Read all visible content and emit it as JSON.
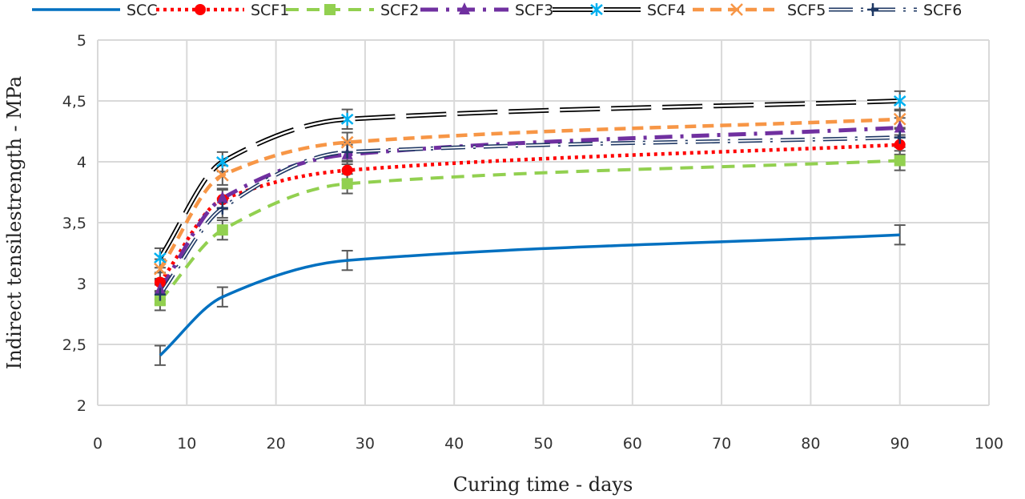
{
  "chart_data": {
    "type": "line",
    "title": "",
    "xlabel": "Curing time - days",
    "ylabel": "Indirect tensilestrength - MPa",
    "xlim": [
      0,
      100
    ],
    "ylim": [
      2,
      5
    ],
    "xticks": [
      "0",
      "10",
      "20",
      "30",
      "40",
      "50",
      "60",
      "70",
      "80",
      "90",
      "100"
    ],
    "yticks": [
      "2",
      "2,5",
      "3",
      "3,5",
      "4",
      "4,5",
      "5"
    ],
    "grid": true,
    "legend_position": "top",
    "x": [
      7,
      14,
      28,
      90
    ],
    "error_bar": 0.08,
    "series": [
      {
        "name": "SCC",
        "values": [
          2.41,
          2.89,
          3.19,
          3.4
        ],
        "color": "#0070C0",
        "marker": "none"
      },
      {
        "name": "SCF1",
        "values": [
          3.01,
          3.69,
          3.93,
          4.14
        ],
        "color": "#FF0000",
        "marker": "circle"
      },
      {
        "name": "SCF2",
        "values": [
          2.86,
          3.44,
          3.82,
          4.01
        ],
        "color": "#92D050",
        "marker": "square"
      },
      {
        "name": "SCF3",
        "values": [
          2.95,
          3.7,
          4.06,
          4.28
        ],
        "color": "#7030A0",
        "marker": "triangle"
      },
      {
        "name": "SCF4",
        "values": [
          3.21,
          4.0,
          4.35,
          4.5
        ],
        "color": "#000000",
        "marker": "asterisk",
        "marker_color": "#00B0F0"
      },
      {
        "name": "SCF5",
        "values": [
          3.12,
          3.89,
          4.16,
          4.35
        ],
        "color": "#F79646",
        "marker": "x"
      },
      {
        "name": "SCF6",
        "values": [
          2.91,
          3.62,
          4.08,
          4.2
        ],
        "color": "#1F3864",
        "marker": "plus"
      }
    ]
  }
}
